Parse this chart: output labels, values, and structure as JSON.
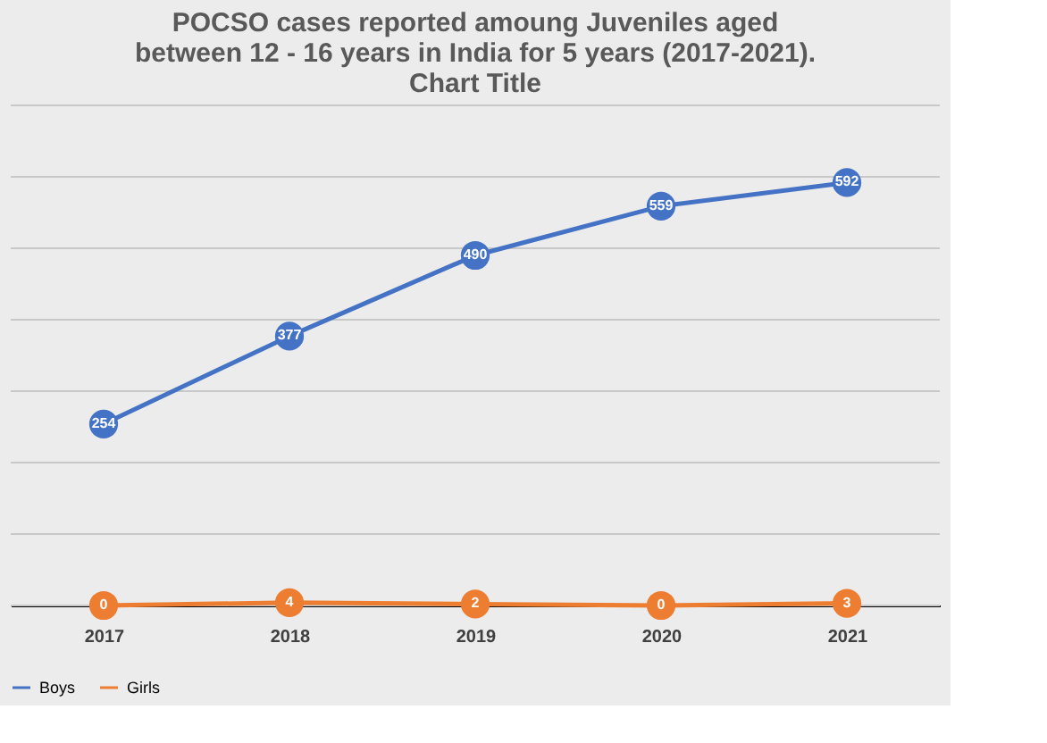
{
  "chart_data": {
    "type": "line",
    "title": "POCSO cases reported amoung Juveniles  aged\nbetween 12 - 16 years in India for 5 years (2017-2021).\nChart Title",
    "categories": [
      "2017",
      "2018",
      "2019",
      "2020",
      "2021"
    ],
    "series": [
      {
        "name": "Boys",
        "color": "#4472c4",
        "values": [
          254,
          377,
          490,
          559,
          592
        ]
      },
      {
        "name": "Girls",
        "color": "#ed7d31",
        "values": [
          0,
          4,
          2,
          0,
          3
        ]
      }
    ],
    "ylim": [
      0,
      700
    ],
    "yticks": [
      {
        "value": 0,
        "label": null
      },
      {
        "value": 100,
        "label": null
      },
      {
        "value": 200,
        "label": null
      },
      {
        "value": 300,
        "label": null
      },
      {
        "value": 400,
        "label": null
      },
      {
        "value": 500,
        "label": null
      },
      {
        "value": 600,
        "label": null
      },
      {
        "value": 700,
        "label": null
      }
    ],
    "tick_labels": "x",
    "grid": "y",
    "legend": "bottom",
    "marker": "circle",
    "line_style": "solid",
    "data_labels": true
  }
}
